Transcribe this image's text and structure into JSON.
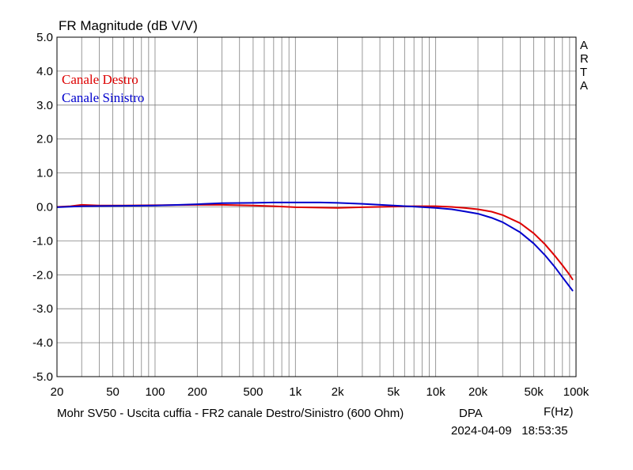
{
  "chart_data": {
    "type": "line",
    "title": "FR Magnitude (dB V/V)",
    "xlabel": "F(Hz)",
    "x_scale": "log",
    "xlim": [
      20,
      100000
    ],
    "ylim": [
      -5.0,
      5.0
    ],
    "grid": true,
    "legend_position": "top-left",
    "x_tick_labels": [
      {
        "value": 20,
        "label": "20"
      },
      {
        "value": 50,
        "label": "50"
      },
      {
        "value": 100,
        "label": "100"
      },
      {
        "value": 200,
        "label": "200"
      },
      {
        "value": 500,
        "label": "500"
      },
      {
        "value": 1000,
        "label": "1k"
      },
      {
        "value": 2000,
        "label": "2k"
      },
      {
        "value": 5000,
        "label": "5k"
      },
      {
        "value": 10000,
        "label": "10k"
      },
      {
        "value": 20000,
        "label": "20k"
      },
      {
        "value": 50000,
        "label": "50k"
      },
      {
        "value": 100000,
        "label": "100k"
      }
    ],
    "y_tick_labels": [
      {
        "value": 5,
        "label": "5.0"
      },
      {
        "value": 4,
        "label": "4.0"
      },
      {
        "value": 3,
        "label": "3.0"
      },
      {
        "value": 2,
        "label": "2.0"
      },
      {
        "value": 1,
        "label": "1.0"
      },
      {
        "value": 0,
        "label": "0.0"
      },
      {
        "value": -1,
        "label": "-1.0"
      },
      {
        "value": -2,
        "label": "-2.0"
      },
      {
        "value": -3,
        "label": "-3.0"
      },
      {
        "value": -4,
        "label": "-4.0"
      },
      {
        "value": -5,
        "label": "-5.0"
      }
    ],
    "series": [
      {
        "name": "Canale Destro",
        "color": "#dd0000",
        "points": [
          [
            20,
            0.0
          ],
          [
            25,
            0.02
          ],
          [
            30,
            0.06
          ],
          [
            40,
            0.04
          ],
          [
            60,
            0.04
          ],
          [
            100,
            0.05
          ],
          [
            200,
            0.06
          ],
          [
            300,
            0.06
          ],
          [
            500,
            0.04
          ],
          [
            700,
            0.02
          ],
          [
            1000,
            -0.01
          ],
          [
            1500,
            -0.02
          ],
          [
            2000,
            -0.03
          ],
          [
            3000,
            -0.01
          ],
          [
            5000,
            0.01
          ],
          [
            7000,
            0.02
          ],
          [
            10000,
            0.02
          ],
          [
            13000,
            0.0
          ],
          [
            16000,
            -0.03
          ],
          [
            20000,
            -0.07
          ],
          [
            25000,
            -0.14
          ],
          [
            30000,
            -0.24
          ],
          [
            40000,
            -0.48
          ],
          [
            50000,
            -0.78
          ],
          [
            60000,
            -1.1
          ],
          [
            70000,
            -1.42
          ],
          [
            80000,
            -1.72
          ],
          [
            90000,
            -2.0
          ],
          [
            95000,
            -2.15
          ]
        ]
      },
      {
        "name": "Canale Sinistro",
        "color": "#0000cc",
        "points": [
          [
            20,
            -0.01
          ],
          [
            30,
            0.02
          ],
          [
            50,
            0.03
          ],
          [
            100,
            0.04
          ],
          [
            150,
            0.06
          ],
          [
            200,
            0.08
          ],
          [
            300,
            0.11
          ],
          [
            500,
            0.12
          ],
          [
            700,
            0.13
          ],
          [
            1000,
            0.13
          ],
          [
            1500,
            0.13
          ],
          [
            2000,
            0.12
          ],
          [
            3000,
            0.09
          ],
          [
            5000,
            0.04
          ],
          [
            7000,
            0.01
          ],
          [
            10000,
            -0.03
          ],
          [
            13000,
            -0.07
          ],
          [
            16000,
            -0.13
          ],
          [
            20000,
            -0.2
          ],
          [
            25000,
            -0.32
          ],
          [
            30000,
            -0.45
          ],
          [
            40000,
            -0.75
          ],
          [
            50000,
            -1.08
          ],
          [
            60000,
            -1.42
          ],
          [
            70000,
            -1.75
          ],
          [
            80000,
            -2.07
          ],
          [
            90000,
            -2.35
          ],
          [
            95000,
            -2.48
          ]
        ]
      }
    ]
  },
  "labels": {
    "title": "FR Magnitude (dB V/V)",
    "brand_letters": [
      "A",
      "R",
      "T",
      "A"
    ],
    "caption": "Mohr SV50 - Uscita cuffia - FR2 canale Destro/Sinistro (600 Ohm)",
    "mode": "DPA",
    "x_unit": "F(Hz)",
    "timestamp": "2024-04-09   18:53:35"
  }
}
